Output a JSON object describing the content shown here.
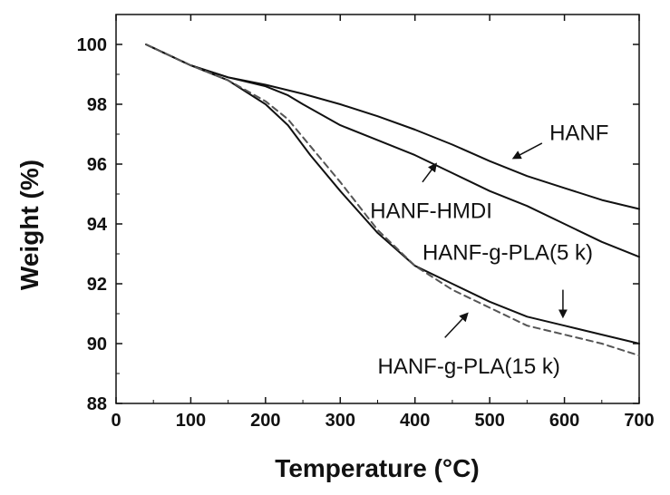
{
  "chart_data": {
    "type": "line",
    "xlabel": "Temperature (°C)",
    "ylabel": "Weight (%)",
    "xlim": [
      0,
      700
    ],
    "ylim": [
      88,
      101
    ],
    "xticks": [
      0,
      100,
      200,
      300,
      400,
      500,
      600,
      700
    ],
    "yticks": [
      88,
      90,
      92,
      94,
      96,
      98,
      100
    ],
    "grid": false,
    "legend": "none",
    "series": [
      {
        "name": "HANF",
        "style": "solid",
        "color": "#111111",
        "x": [
          40,
          100,
          150,
          200,
          250,
          300,
          350,
          400,
          450,
          500,
          550,
          600,
          650,
          700
        ],
        "y": [
          100,
          99.3,
          98.9,
          98.65,
          98.35,
          98.0,
          97.6,
          97.15,
          96.65,
          96.1,
          95.6,
          95.2,
          94.8,
          94.5
        ]
      },
      {
        "name": "HANF-HMDI",
        "style": "solid",
        "color": "#111111",
        "x": [
          40,
          100,
          150,
          200,
          230,
          250,
          300,
          350,
          400,
          450,
          500,
          550,
          600,
          650,
          700
        ],
        "y": [
          100,
          99.3,
          98.9,
          98.6,
          98.3,
          98.0,
          97.3,
          96.8,
          96.3,
          95.7,
          95.1,
          94.6,
          94.0,
          93.4,
          92.9
        ]
      },
      {
        "name": "HANF-g-PLA(5 k)",
        "style": "solid",
        "color": "#111111",
        "x": [
          40,
          100,
          150,
          200,
          230,
          260,
          300,
          350,
          400,
          450,
          500,
          550,
          600,
          650,
          700
        ],
        "y": [
          100,
          99.3,
          98.8,
          98.0,
          97.3,
          96.3,
          95.1,
          93.7,
          92.6,
          92.0,
          91.4,
          90.9,
          90.6,
          90.3,
          90.0
        ]
      },
      {
        "name": "HANF-g-PLA(15 k)",
        "style": "dashed",
        "color": "#555555",
        "x": [
          40,
          100,
          150,
          200,
          230,
          260,
          300,
          350,
          400,
          450,
          500,
          550,
          600,
          650,
          700
        ],
        "y": [
          100,
          99.3,
          98.8,
          98.1,
          97.5,
          96.6,
          95.4,
          93.8,
          92.6,
          91.8,
          91.2,
          90.6,
          90.3,
          90.0,
          89.6
        ]
      }
    ],
    "annotations": [
      {
        "text": "HANF",
        "pos": [
          580,
          96.8
        ],
        "arrow_tail": [
          570,
          96.7
        ],
        "arrow_head": [
          532,
          96.2
        ]
      },
      {
        "text": "HANF-HMDI",
        "pos": [
          340,
          94.2
        ],
        "arrow_tail": [
          410,
          95.4
        ],
        "arrow_head": [
          428,
          96.0
        ]
      },
      {
        "text": "HANF-g-PLA(5 k)",
        "pos": [
          410,
          92.8
        ],
        "arrow_tail": [
          598,
          91.8
        ],
        "arrow_head": [
          598,
          90.9
        ]
      },
      {
        "text": "HANF-g-PLA(15 k)",
        "pos": [
          350,
          89.0
        ],
        "arrow_tail": [
          440,
          90.2
        ],
        "arrow_head": [
          470,
          91.0
        ]
      }
    ]
  }
}
